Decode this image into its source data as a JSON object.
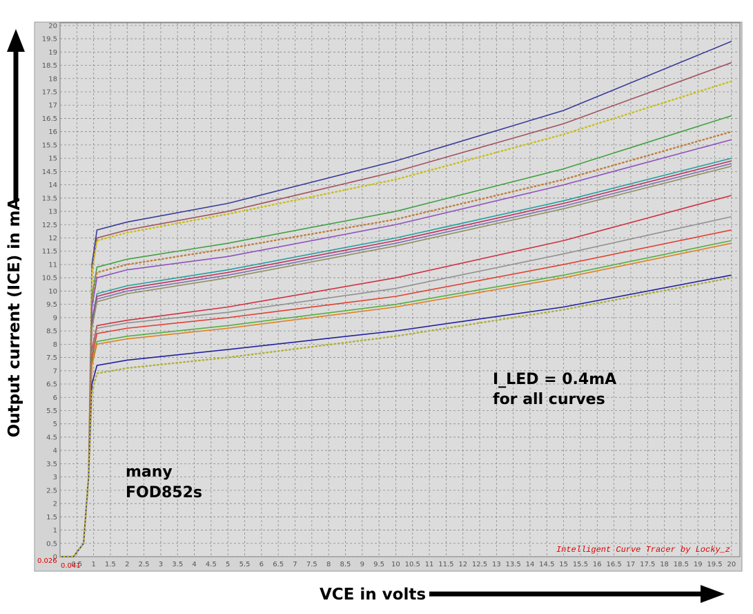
{
  "chart_data": {
    "type": "line",
    "y_label": "Output current (ICE) in mA",
    "x_label": "VCE in volts",
    "annotations": [
      "I_LED = 0.4mA",
      "for all curves",
      "many",
      "FOD852s"
    ],
    "watermark": "Intelligent Curve Tracer by Locky_z",
    "corner_labels": [
      "0.026",
      "0.041"
    ],
    "xlim": [
      0,
      20.25
    ],
    "ylim": [
      0,
      20.1
    ],
    "grid": true,
    "xticks": [
      0.5,
      1,
      1.5,
      2,
      2.5,
      3,
      3.5,
      4,
      4.5,
      5,
      5.5,
      6,
      6.5,
      7,
      7.5,
      8,
      8.5,
      9,
      9.5,
      10,
      10.5,
      11,
      11.5,
      12,
      12.5,
      13,
      13.5,
      14,
      14.5,
      15,
      15.5,
      16,
      16.5,
      17,
      17.5,
      18,
      18.5,
      19,
      19.5,
      20
    ],
    "yticks": [
      0,
      0.5,
      1,
      1.5,
      2,
      2.5,
      3,
      3.5,
      4,
      4.5,
      5,
      5.5,
      6,
      6.5,
      7,
      7.5,
      8,
      8.5,
      9,
      9.5,
      10,
      10.5,
      11,
      11.5,
      12,
      12.5,
      13,
      13.5,
      14,
      14.5,
      15,
      15.5,
      16,
      16.5,
      17,
      17.5,
      18,
      18.5,
      19,
      19.5,
      20
    ],
    "x": [
      0,
      0.4,
      0.7,
      0.85,
      0.95,
      1.1,
      2,
      5,
      10,
      15,
      20
    ],
    "series": [
      {
        "color": "#3a3a9a",
        "style": "solid",
        "values": [
          0,
          0,
          0.5,
          3,
          11,
          12.3,
          12.6,
          13.3,
          14.9,
          16.8,
          19.4
        ]
      },
      {
        "color": "#a05060",
        "style": "solid",
        "values": [
          0,
          0,
          0.5,
          3,
          10.8,
          12.0,
          12.3,
          13.0,
          14.5,
          16.3,
          18.6
        ]
      },
      {
        "color": "#c8c020",
        "style": "dotted",
        "values": [
          0,
          0,
          0.5,
          3,
          10.7,
          11.9,
          12.2,
          12.9,
          14.2,
          15.9,
          17.9
        ]
      },
      {
        "color": "#40a040",
        "style": "solid",
        "values": [
          0,
          0,
          0.5,
          3,
          9.8,
          10.9,
          11.2,
          11.8,
          13.0,
          14.6,
          16.6
        ]
      },
      {
        "color": "#c08040",
        "style": "dotted",
        "values": [
          0,
          0,
          0.5,
          3,
          9.6,
          10.7,
          11.0,
          11.6,
          12.7,
          14.2,
          16.0
        ]
      },
      {
        "color": "#9050c0",
        "style": "solid",
        "values": [
          0,
          0,
          0.5,
          3,
          9.4,
          10.5,
          10.8,
          11.3,
          12.5,
          14.0,
          15.7
        ]
      },
      {
        "color": "#20a0a0",
        "style": "solid",
        "values": [
          0,
          0,
          0.5,
          3,
          8.9,
          9.9,
          10.2,
          10.8,
          12.0,
          13.4,
          15.0
        ]
      },
      {
        "color": "#c03060",
        "style": "solid",
        "values": [
          0,
          0,
          0.5,
          3,
          8.8,
          9.8,
          10.1,
          10.7,
          11.9,
          13.3,
          14.9
        ]
      },
      {
        "color": "#8070b0",
        "style": "solid",
        "values": [
          0,
          0,
          0.5,
          3,
          8.7,
          9.7,
          10.0,
          10.6,
          11.8,
          13.2,
          14.8
        ]
      },
      {
        "color": "#909060",
        "style": "solid",
        "values": [
          0,
          0,
          0.5,
          3,
          8.6,
          9.6,
          9.9,
          10.5,
          11.7,
          13.1,
          14.7
        ]
      },
      {
        "color": "#d03040",
        "style": "solid",
        "values": [
          0,
          0,
          0.5,
          3,
          7.8,
          8.7,
          8.9,
          9.4,
          10.5,
          11.9,
          13.6
        ]
      },
      {
        "color": "#909090",
        "style": "solid",
        "values": [
          0,
          0,
          0.5,
          3,
          7.7,
          8.6,
          8.8,
          9.2,
          10.1,
          11.4,
          12.8
        ]
      },
      {
        "color": "#e04030",
        "style": "solid",
        "values": [
          0,
          0,
          0.5,
          3,
          7.5,
          8.4,
          8.6,
          9.0,
          9.8,
          11.0,
          12.3
        ]
      },
      {
        "color": "#50b040",
        "style": "solid",
        "values": [
          0,
          0,
          0.5,
          3,
          7.3,
          8.1,
          8.3,
          8.7,
          9.5,
          10.6,
          11.9
        ]
      },
      {
        "color": "#e08020",
        "style": "solid",
        "values": [
          0,
          0,
          0.5,
          3,
          7.2,
          8.0,
          8.2,
          8.6,
          9.4,
          10.5,
          11.8
        ]
      },
      {
        "color": "#2020a0",
        "style": "solid",
        "values": [
          0,
          0,
          0.5,
          3,
          6.5,
          7.2,
          7.4,
          7.8,
          8.5,
          9.4,
          10.6
        ]
      },
      {
        "color": "#b0b040",
        "style": "dotted",
        "values": [
          0,
          0,
          0.5,
          3,
          6.2,
          6.9,
          7.1,
          7.5,
          8.3,
          9.3,
          10.5
        ]
      }
    ]
  }
}
